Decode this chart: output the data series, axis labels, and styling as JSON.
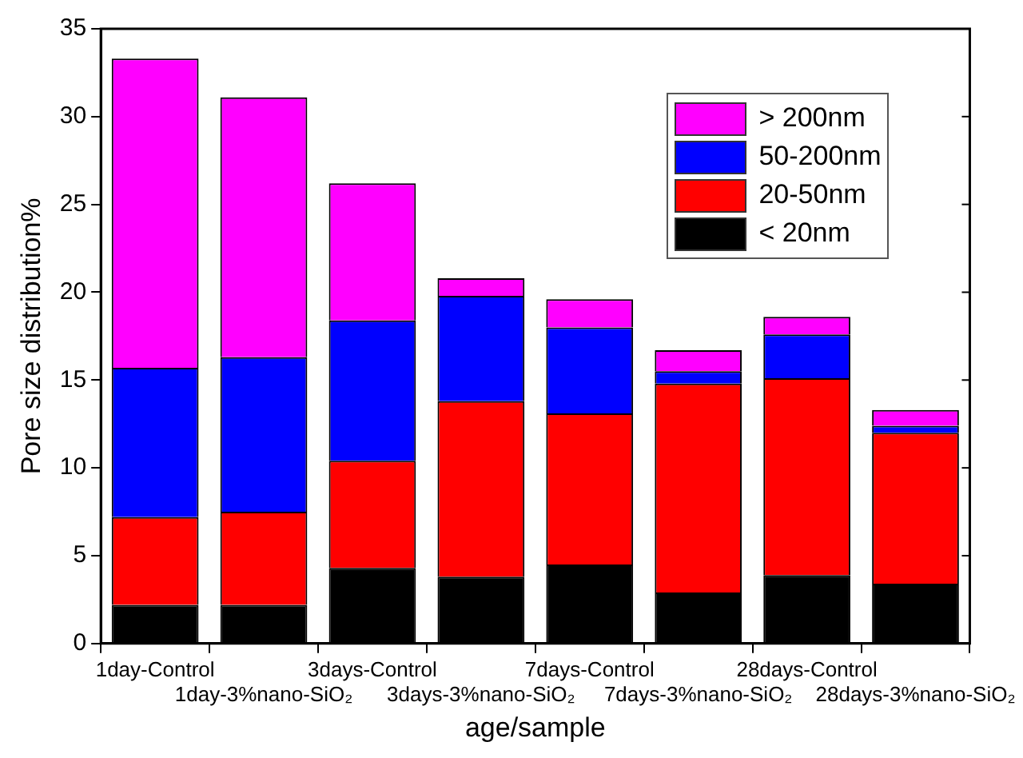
{
  "chart_data": {
    "type": "bar",
    "stacked": true,
    "xlabel": "age/sample",
    "ylabel": "Pore size distribution%",
    "categories": [
      "1day-Control",
      "1day-3%nano-SiO₂",
      "3days-Control",
      "3days-3%nano-SiO₂",
      "7days-Control",
      "7days-3%nano-SiO₂",
      "28days-Control",
      "28days-3%nano-SiO₂"
    ],
    "series": [
      {
        "name": "< 20nm",
        "color": "#000000",
        "values": [
          2.2,
          2.2,
          4.3,
          3.8,
          4.5,
          2.9,
          3.9,
          3.4
        ]
      },
      {
        "name": "20-50nm",
        "color": "#ff0000",
        "values": [
          5.0,
          5.3,
          6.1,
          10.0,
          8.6,
          11.9,
          11.2,
          8.6
        ]
      },
      {
        "name": "50-200nm",
        "color": "#0000ff",
        "values": [
          8.5,
          8.8,
          8.0,
          6.0,
          4.9,
          0.7,
          2.5,
          0.4
        ]
      },
      {
        "name": "> 200nm",
        "color": "#ff00ff",
        "values": [
          17.6,
          14.8,
          7.8,
          1.0,
          1.6,
          1.2,
          1.0,
          0.9
        ]
      }
    ],
    "ylim": [
      0,
      35
    ],
    "yticks": [
      0,
      5,
      10,
      15,
      20,
      25,
      30,
      35
    ],
    "grid": false,
    "legend": "top right"
  }
}
